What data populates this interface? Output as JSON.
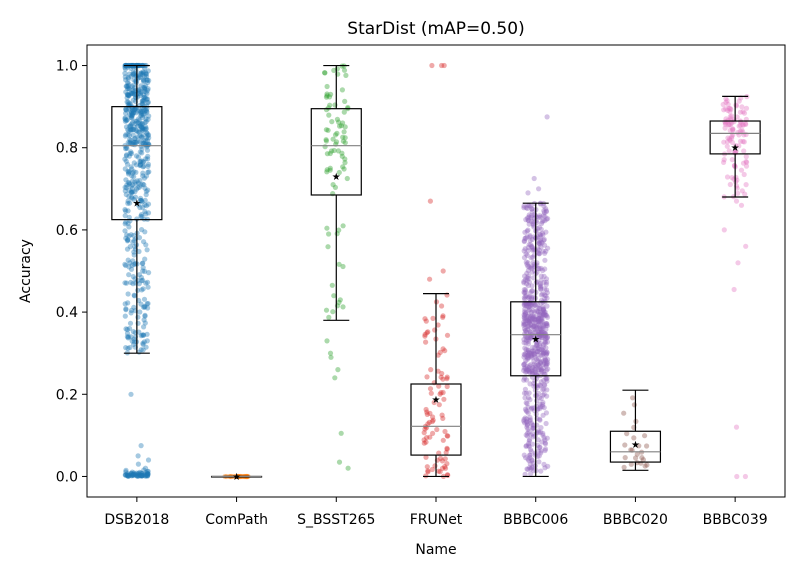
{
  "chart_data": {
    "type": "box-strip",
    "title": "StarDist (mAP=0.50)",
    "xlabel": "Name",
    "ylabel": "Accuracy",
    "ylim": [
      -0.05,
      1.05
    ],
    "yticks": [
      "0.0",
      "0.2",
      "0.4",
      "0.6",
      "0.8",
      "1.0"
    ],
    "grid": false,
    "legend": "none",
    "mean_marker": "star",
    "categories": [
      "DSB2018",
      "ComPath",
      "S_BSST265",
      "FRUNet",
      "BBBC006",
      "BBBC020",
      "BBBC039"
    ],
    "colors": [
      "#1f77b4",
      "#ff7f0e",
      "#2ca02c",
      "#d62728",
      "#9467bd",
      "#8c564b",
      "#e377c2"
    ],
    "boxes": [
      {
        "name": "DSB2018",
        "whisker_low": 0.3,
        "q1": 0.625,
        "median": 0.805,
        "q3": 0.9,
        "whisker_high": 1.0,
        "mean": 0.665,
        "n_points": 520
      },
      {
        "name": "ComPath",
        "whisker_low": 0.0,
        "q1": 0.0,
        "median": 0.0,
        "q3": 0.0,
        "whisker_high": 0.0,
        "mean": 0.0,
        "n_points": 25
      },
      {
        "name": "S_BSST265",
        "whisker_low": 0.38,
        "q1": 0.685,
        "median": 0.805,
        "q3": 0.895,
        "whisker_high": 1.0,
        "mean": 0.73,
        "n_points": 80
      },
      {
        "name": "FRUNet",
        "whisker_low": 0.0,
        "q1": 0.052,
        "median": 0.122,
        "q3": 0.225,
        "whisker_high": 0.445,
        "mean": 0.187,
        "n_points": 90
      },
      {
        "name": "BBBC006",
        "whisker_low": 0.0,
        "q1": 0.245,
        "median": 0.345,
        "q3": 0.425,
        "whisker_high": 0.665,
        "mean": 0.335,
        "n_points": 700
      },
      {
        "name": "BBBC020",
        "whisker_low": 0.015,
        "q1": 0.035,
        "median": 0.06,
        "q3": 0.11,
        "whisker_high": 0.21,
        "mean": 0.078,
        "n_points": 25
      },
      {
        "name": "BBBC039",
        "whisker_low": 0.68,
        "q1": 0.785,
        "median": 0.835,
        "q3": 0.865,
        "whisker_high": 0.925,
        "mean": 0.8,
        "n_points": 110
      }
    ]
  }
}
